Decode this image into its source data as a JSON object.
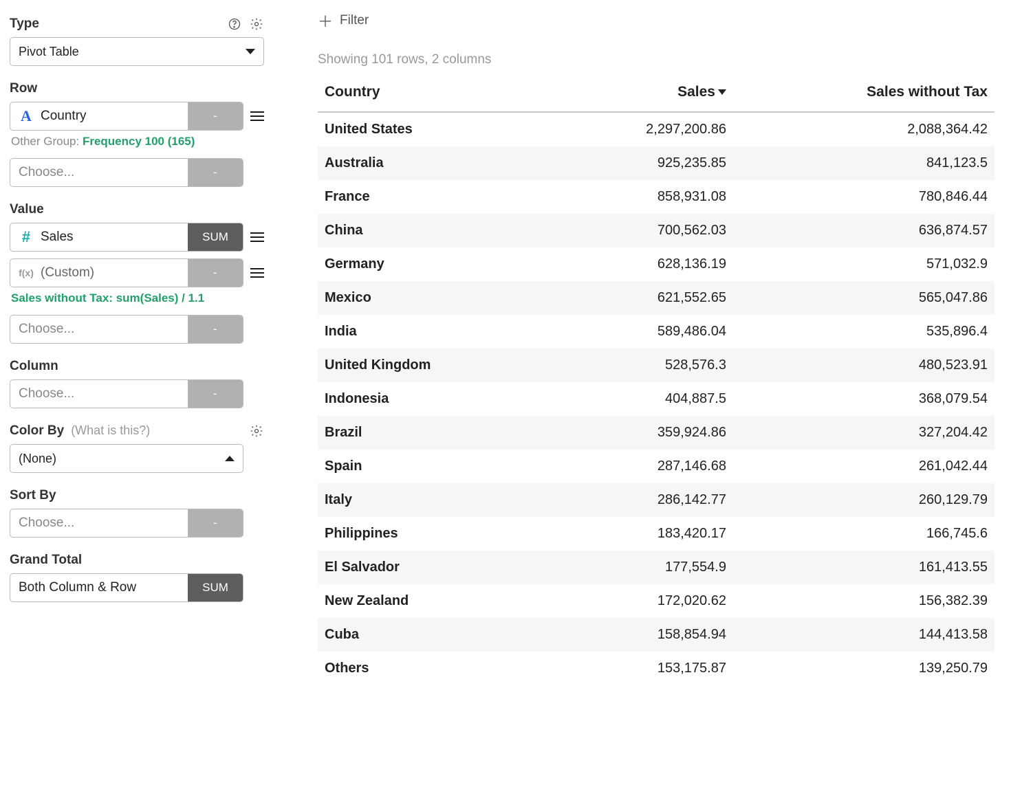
{
  "sidebar": {
    "type": {
      "label": "Type",
      "value": "Pivot Table"
    },
    "row": {
      "label": "Row",
      "field": "Country",
      "btn": "-",
      "other_group_prefix": "Other Group: ",
      "other_group_value": "Frequency 100 (165)",
      "choose": "Choose...",
      "choose_btn": "-"
    },
    "value": {
      "label": "Value",
      "field1": "Sales",
      "field1_agg": "SUM",
      "field2": "(Custom)",
      "field2_btn": "-",
      "formula": "Sales without Tax: sum(Sales) / 1.1",
      "choose": "Choose...",
      "choose_btn": "-"
    },
    "column": {
      "label": "Column",
      "choose": "Choose...",
      "choose_btn": "-"
    },
    "color_by": {
      "label": "Color By",
      "hint": "(What is this?)",
      "value": "(None)"
    },
    "sort_by": {
      "label": "Sort By",
      "choose": "Choose...",
      "choose_btn": "-"
    },
    "grand_total": {
      "label": "Grand Total",
      "value": "Both Column & Row",
      "agg": "SUM"
    }
  },
  "main": {
    "filter_label": "Filter",
    "summary": "Showing 101 rows, 2 columns",
    "columns": [
      "Country",
      "Sales",
      "Sales without Tax"
    ],
    "sort_col_index": 1,
    "rows": [
      [
        "United States",
        "2,297,200.86",
        "2,088,364.42"
      ],
      [
        "Australia",
        "925,235.85",
        "841,123.5"
      ],
      [
        "France",
        "858,931.08",
        "780,846.44"
      ],
      [
        "China",
        "700,562.03",
        "636,874.57"
      ],
      [
        "Germany",
        "628,136.19",
        "571,032.9"
      ],
      [
        "Mexico",
        "621,552.65",
        "565,047.86"
      ],
      [
        "India",
        "589,486.04",
        "535,896.4"
      ],
      [
        "United Kingdom",
        "528,576.3",
        "480,523.91"
      ],
      [
        "Indonesia",
        "404,887.5",
        "368,079.54"
      ],
      [
        "Brazil",
        "359,924.86",
        "327,204.42"
      ],
      [
        "Spain",
        "287,146.68",
        "261,042.44"
      ],
      [
        "Italy",
        "286,142.77",
        "260,129.79"
      ],
      [
        "Philippines",
        "183,420.17",
        "166,745.6"
      ],
      [
        "El Salvador",
        "177,554.9",
        "161,413.55"
      ],
      [
        "New Zealand",
        "172,020.62",
        "156,382.39"
      ],
      [
        "Cuba",
        "158,854.94",
        "144,413.58"
      ],
      [
        "Others",
        "153,175.87",
        "139,250.79"
      ]
    ],
    "stripe_color": "#f6f6f6"
  }
}
